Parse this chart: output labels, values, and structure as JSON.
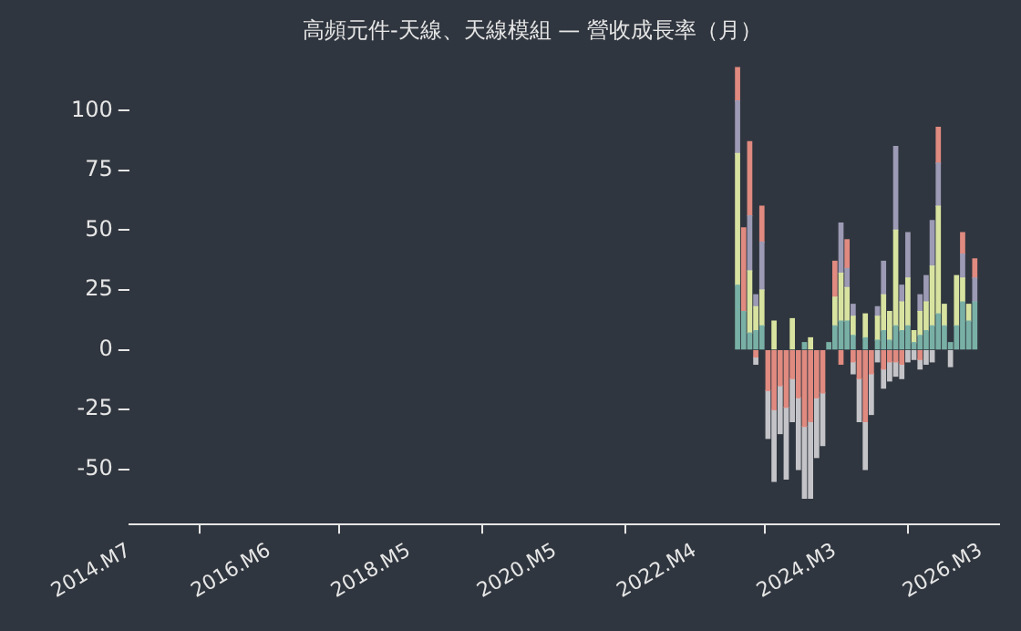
{
  "chart_data": {
    "type": "bar",
    "title": "高頻元件-天線、天線模組 — 營收成長率（月）",
    "stacked": true,
    "grid": false,
    "legend": false,
    "x": [
      "2022-11",
      "2022-12",
      "2023-01",
      "2023-02",
      "2023-03",
      "2023-04",
      "2023-05",
      "2023-06",
      "2023-07",
      "2023-08",
      "2023-09",
      "2023-10",
      "2023-11",
      "2023-12",
      "2024-01",
      "2024-02",
      "2024-03",
      "2024-04",
      "2024-05",
      "2024-06",
      "2024-07",
      "2024-08",
      "2024-09",
      "2024-10",
      "2024-11",
      "2024-12",
      "2025-01",
      "2025-02",
      "2025-03",
      "2025-04",
      "2025-05",
      "2025-06",
      "2025-07",
      "2025-08",
      "2025-09",
      "2025-10",
      "2025-11",
      "2025-12",
      "2026-01",
      "2026-02"
    ],
    "xlim": [
      "2014-07",
      "2026-06"
    ],
    "xticks": [
      {
        "value": "2014-07",
        "label": "2014.M7"
      },
      {
        "value": "2016-06",
        "label": "2016.M6"
      },
      {
        "value": "2018-05",
        "label": "2018.M5"
      },
      {
        "value": "2020-05",
        "label": "2020.M5"
      },
      {
        "value": "2022-04",
        "label": "2022.M4"
      },
      {
        "value": "2024-03",
        "label": "2024.M3"
      },
      {
        "value": "2026-03",
        "label": "2026.M3"
      }
    ],
    "ylim": [
      -73,
      120
    ],
    "yticks": [
      -50,
      -25,
      0,
      25,
      50,
      75,
      100
    ],
    "series": [
      {
        "color": "#79b0a6",
        "values": [
          27,
          16,
          7,
          8,
          10,
          0,
          0,
          0,
          0,
          0,
          0,
          3,
          0,
          0,
          0,
          3,
          10,
          12,
          12,
          6,
          0,
          5,
          0,
          4,
          8,
          4,
          10,
          8,
          10,
          3,
          6,
          8,
          10,
          15,
          10,
          3,
          10,
          20,
          12,
          20
        ]
      },
      {
        "color": "#d8e3a0",
        "values": [
          55,
          0,
          26,
          10,
          15,
          0,
          12,
          0,
          0,
          13,
          0,
          0,
          5,
          0,
          0,
          0,
          12,
          20,
          14,
          8,
          0,
          10,
          0,
          10,
          15,
          12,
          40,
          12,
          20,
          5,
          10,
          12,
          25,
          45,
          9,
          0,
          21,
          10,
          7,
          0
        ]
      },
      {
        "color": "#9c9ab4",
        "values": [
          22,
          0,
          23,
          5,
          20,
          0,
          0,
          0,
          0,
          0,
          0,
          0,
          0,
          0,
          0,
          0,
          0,
          21,
          8,
          5,
          0,
          0,
          0,
          4,
          14,
          0,
          35,
          7,
          19,
          0,
          7,
          11,
          19,
          18,
          0,
          0,
          0,
          10,
          0,
          10
        ]
      },
      {
        "color": "#e08a80",
        "values": [
          14,
          35,
          31,
          -3,
          15,
          -17,
          -25,
          -15,
          -24,
          -12,
          -20,
          -32,
          -30,
          -20,
          -18,
          0,
          15,
          -6,
          12,
          -5,
          -12,
          -30,
          -10,
          0,
          -8,
          -5,
          -5,
          -6,
          0,
          0,
          -4,
          0,
          0,
          15,
          0,
          0,
          0,
          9,
          0,
          8
        ]
      },
      {
        "color": "#c4c4c8",
        "values": [
          0,
          0,
          0,
          -3,
          0,
          -20,
          -30,
          -20,
          -30,
          -18,
          -30,
          -30,
          -32,
          -25,
          -22,
          0,
          0,
          0,
          0,
          -5,
          -18,
          -20,
          -17,
          -5,
          -8,
          -8,
          -6,
          -6,
          -5,
          -4,
          -4,
          -6,
          -5,
          0,
          0,
          -7,
          0,
          0,
          0,
          0
        ]
      }
    ]
  }
}
